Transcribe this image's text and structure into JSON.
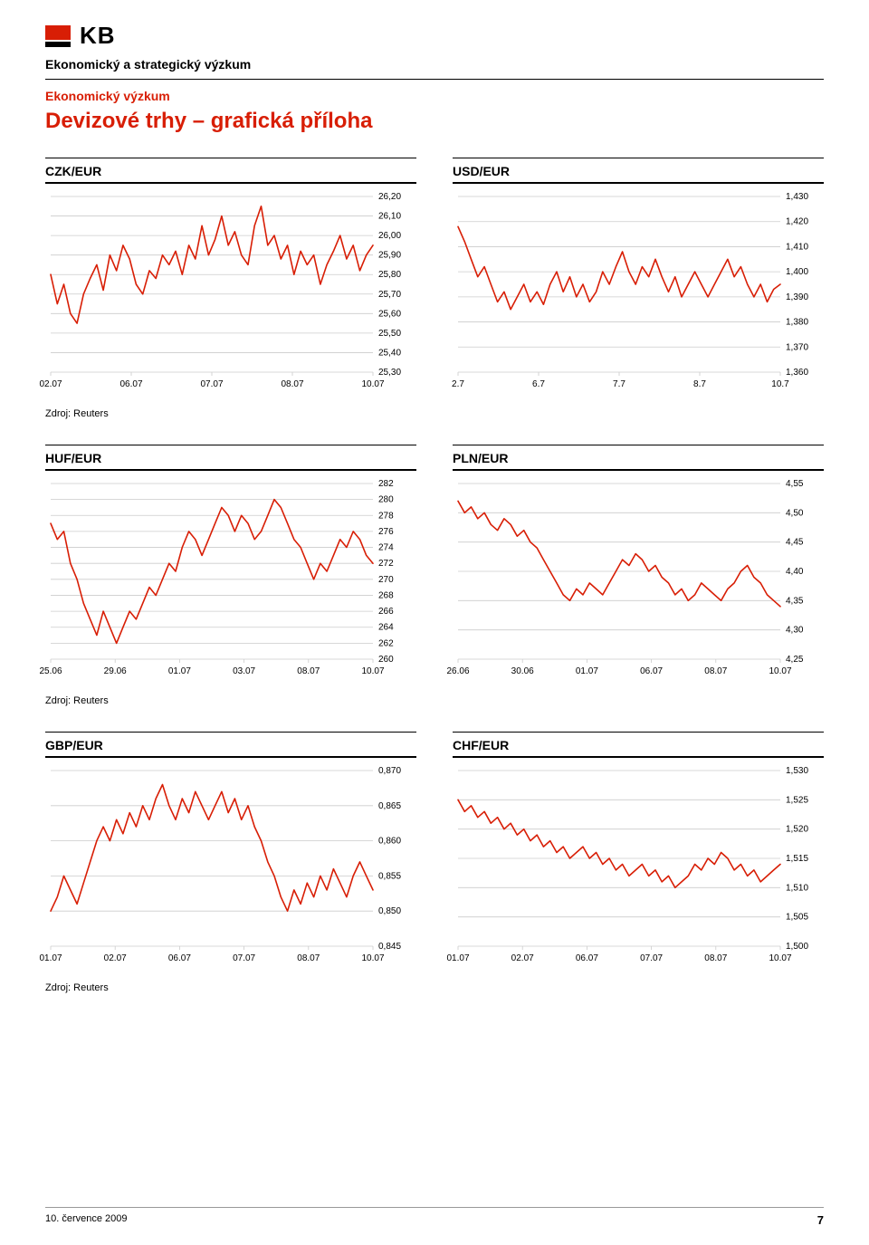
{
  "logo_text": "KB",
  "header": {
    "line1": "Ekonomický a strategický výzkum",
    "line2": "Ekonomický výzkum",
    "title": "Devizové trhy – grafická příloha"
  },
  "source_label": "Zdroj: Reuters",
  "footer_date": "10. července 2009",
  "footer_page": "7",
  "style": {
    "line_color": "#d81e05",
    "line_width": 1.6,
    "grid_color": "#cccccc",
    "axis_color": "#000000",
    "tick_font_size": 10,
    "background": "#ffffff"
  },
  "charts": [
    {
      "id": "czk",
      "title": "CZK/EUR",
      "x_ticks": [
        "02.07",
        "06.07",
        "07.07",
        "08.07",
        "10.07"
      ],
      "y_min": 25.3,
      "y_max": 26.2,
      "y_step": 0.1,
      "y_decimals": 2,
      "y_sep": ",",
      "series": [
        25.8,
        25.65,
        25.75,
        25.6,
        25.55,
        25.7,
        25.78,
        25.85,
        25.72,
        25.9,
        25.82,
        25.95,
        25.88,
        25.75,
        25.7,
        25.82,
        25.78,
        25.9,
        25.85,
        25.92,
        25.8,
        25.95,
        25.88,
        26.05,
        25.9,
        25.98,
        26.1,
        25.95,
        26.02,
        25.9,
        25.85,
        26.05,
        26.15,
        25.95,
        26.0,
        25.88,
        25.95,
        25.8,
        25.92,
        25.85,
        25.9,
        25.75,
        25.85,
        25.92,
        26.0,
        25.88,
        25.95,
        25.82,
        25.9,
        25.95
      ]
    },
    {
      "id": "usd",
      "title": "USD/EUR",
      "x_ticks": [
        "2.7",
        "6.7",
        "7.7",
        "8.7",
        "10.7"
      ],
      "y_min": 1.36,
      "y_max": 1.43,
      "y_step": 0.01,
      "y_decimals": 3,
      "y_sep": ",",
      "series": [
        1.418,
        1.412,
        1.405,
        1.398,
        1.402,
        1.395,
        1.388,
        1.392,
        1.385,
        1.39,
        1.395,
        1.388,
        1.392,
        1.387,
        1.395,
        1.4,
        1.392,
        1.398,
        1.39,
        1.395,
        1.388,
        1.392,
        1.4,
        1.395,
        1.402,
        1.408,
        1.4,
        1.395,
        1.402,
        1.398,
        1.405,
        1.398,
        1.392,
        1.398,
        1.39,
        1.395,
        1.4,
        1.395,
        1.39,
        1.395,
        1.4,
        1.405,
        1.398,
        1.402,
        1.395,
        1.39,
        1.395,
        1.388,
        1.393,
        1.395
      ]
    },
    {
      "id": "huf",
      "title": "HUF/EUR",
      "x_ticks": [
        "25.06",
        "29.06",
        "01.07",
        "03.07",
        "08.07",
        "10.07"
      ],
      "y_min": 260,
      "y_max": 282,
      "y_step": 2,
      "y_decimals": 0,
      "y_sep": ",",
      "series": [
        277,
        275,
        276,
        272,
        270,
        267,
        265,
        263,
        266,
        264,
        262,
        264,
        266,
        265,
        267,
        269,
        268,
        270,
        272,
        271,
        274,
        276,
        275,
        273,
        275,
        277,
        279,
        278,
        276,
        278,
        277,
        275,
        276,
        278,
        280,
        279,
        277,
        275,
        274,
        272,
        270,
        272,
        271,
        273,
        275,
        274,
        276,
        275,
        273,
        272
      ]
    },
    {
      "id": "pln",
      "title": "PLN/EUR",
      "x_ticks": [
        "26.06",
        "30.06",
        "01.07",
        "06.07",
        "08.07",
        "10.07"
      ],
      "y_min": 4.25,
      "y_max": 4.55,
      "y_step": 0.05,
      "y_decimals": 2,
      "y_sep": ",",
      "series": [
        4.52,
        4.5,
        4.51,
        4.49,
        4.5,
        4.48,
        4.47,
        4.49,
        4.48,
        4.46,
        4.47,
        4.45,
        4.44,
        4.42,
        4.4,
        4.38,
        4.36,
        4.35,
        4.37,
        4.36,
        4.38,
        4.37,
        4.36,
        4.38,
        4.4,
        4.42,
        4.41,
        4.43,
        4.42,
        4.4,
        4.41,
        4.39,
        4.38,
        4.36,
        4.37,
        4.35,
        4.36,
        4.38,
        4.37,
        4.36,
        4.35,
        4.37,
        4.38,
        4.4,
        4.41,
        4.39,
        4.38,
        4.36,
        4.35,
        4.34
      ]
    },
    {
      "id": "gbp",
      "title": "GBP/EUR",
      "x_ticks": [
        "01.07",
        "02.07",
        "06.07",
        "07.07",
        "08.07",
        "10.07"
      ],
      "y_min": 0.845,
      "y_max": 0.87,
      "y_step": 0.005,
      "y_decimals": 3,
      "y_sep": ",",
      "series": [
        0.85,
        0.852,
        0.855,
        0.853,
        0.851,
        0.854,
        0.857,
        0.86,
        0.862,
        0.86,
        0.863,
        0.861,
        0.864,
        0.862,
        0.865,
        0.863,
        0.866,
        0.868,
        0.865,
        0.863,
        0.866,
        0.864,
        0.867,
        0.865,
        0.863,
        0.865,
        0.867,
        0.864,
        0.866,
        0.863,
        0.865,
        0.862,
        0.86,
        0.857,
        0.855,
        0.852,
        0.85,
        0.853,
        0.851,
        0.854,
        0.852,
        0.855,
        0.853,
        0.856,
        0.854,
        0.852,
        0.855,
        0.857,
        0.855,
        0.853
      ]
    },
    {
      "id": "chf",
      "title": "CHF/EUR",
      "x_ticks": [
        "01.07",
        "02.07",
        "06.07",
        "07.07",
        "08.07",
        "10.07"
      ],
      "y_min": 1.5,
      "y_max": 1.53,
      "y_step": 0.005,
      "y_decimals": 3,
      "y_sep": ",",
      "series": [
        1.525,
        1.523,
        1.524,
        1.522,
        1.523,
        1.521,
        1.522,
        1.52,
        1.521,
        1.519,
        1.52,
        1.518,
        1.519,
        1.517,
        1.518,
        1.516,
        1.517,
        1.515,
        1.516,
        1.517,
        1.515,
        1.516,
        1.514,
        1.515,
        1.513,
        1.514,
        1.512,
        1.513,
        1.514,
        1.512,
        1.513,
        1.511,
        1.512,
        1.51,
        1.511,
        1.512,
        1.514,
        1.513,
        1.515,
        1.514,
        1.516,
        1.515,
        1.513,
        1.514,
        1.512,
        1.513,
        1.511,
        1.512,
        1.513,
        1.514
      ]
    }
  ]
}
